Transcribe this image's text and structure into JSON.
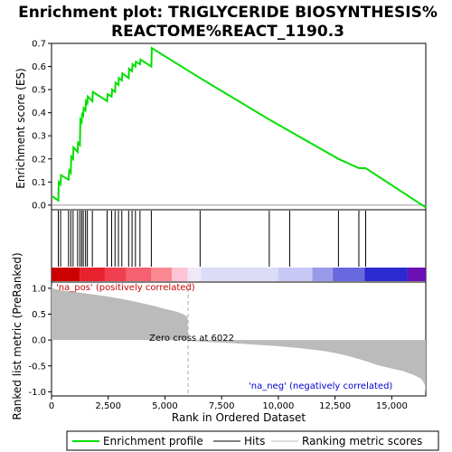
{
  "title_lines": [
    "Enrichment plot: TRIGLYCERIDE BIOSYNTHESIS%",
    "REACTOME%REACT_1190.3"
  ],
  "colors": {
    "enrichment_line": "#00e000",
    "hit_line": "#000000",
    "metric_fill": "#bbbbbb",
    "pos_label": "#cc0000",
    "neg_label": "#0000cc",
    "zero_cross_line": "#aaaaaa"
  },
  "chart_data": [
    {
      "type": "line",
      "name": "enrichment-score-panel",
      "ylabel": "Enrichment score (ES)",
      "ylim": [
        -0.02,
        0.7
      ],
      "yticks": [
        0.0,
        0.1,
        0.2,
        0.3,
        0.4,
        0.5,
        0.6,
        0.7
      ],
      "ytick_labels": [
        "0.0",
        "0.1",
        "0.2",
        "0.3",
        "0.4",
        "0.5",
        "0.6",
        "0.7"
      ],
      "xlim": [
        0,
        16500
      ],
      "series": [
        {
          "name": "Enrichment profile",
          "x": [
            0,
            300,
            320,
            400,
            420,
            750,
            780,
            850,
            870,
            950,
            970,
            1150,
            1170,
            1250,
            1270,
            1330,
            1350,
            1400,
            1420,
            1500,
            1520,
            1580,
            1600,
            1800,
            1820,
            2450,
            2470,
            2650,
            2670,
            2800,
            2820,
            2950,
            2970,
            3100,
            3120,
            3400,
            3420,
            3550,
            3570,
            3700,
            3720,
            3900,
            3920,
            4400,
            4420,
            6550,
            9600,
            10500,
            12650,
            13550,
            13850,
            16500
          ],
          "y": [
            0.04,
            0.02,
            0.1,
            0.09,
            0.13,
            0.11,
            0.15,
            0.14,
            0.21,
            0.2,
            0.25,
            0.23,
            0.27,
            0.26,
            0.37,
            0.36,
            0.4,
            0.39,
            0.42,
            0.41,
            0.45,
            0.44,
            0.47,
            0.45,
            0.49,
            0.45,
            0.48,
            0.47,
            0.5,
            0.49,
            0.53,
            0.52,
            0.55,
            0.54,
            0.57,
            0.55,
            0.59,
            0.58,
            0.61,
            0.6,
            0.62,
            0.61,
            0.63,
            0.6,
            0.68,
            0.55,
            0.37,
            0.32,
            0.2,
            0.16,
            0.16,
            -0.01
          ]
        }
      ]
    },
    {
      "type": "heatmap",
      "name": "hits-panel",
      "series": [
        {
          "name": "Hits",
          "x": [
            300,
            400,
            750,
            850,
            950,
            1150,
            1250,
            1330,
            1400,
            1500,
            1580,
            1800,
            2450,
            2650,
            2800,
            2950,
            3100,
            3400,
            3550,
            3700,
            3900,
            4400,
            6550,
            9600,
            10500,
            12650,
            13550,
            13850
          ]
        }
      ],
      "color_bands": [
        {
          "from": 0,
          "to": 1250,
          "color": "#cc0000"
        },
        {
          "from": 1250,
          "to": 2350,
          "color": "#e8222c"
        },
        {
          "from": 2350,
          "to": 3300,
          "color": "#f04050"
        },
        {
          "from": 3300,
          "to": 4400,
          "color": "#f66070"
        },
        {
          "from": 4400,
          "to": 5300,
          "color": "#fa8890"
        },
        {
          "from": 5300,
          "to": 6000,
          "color": "#fcc4d4"
        },
        {
          "from": 6000,
          "to": 6600,
          "color": "#f0e8f8"
        },
        {
          "from": 6600,
          "to": 10000,
          "color": "#dcdcf8"
        },
        {
          "from": 10000,
          "to": 11500,
          "color": "#c8c8f4"
        },
        {
          "from": 11500,
          "to": 12400,
          "color": "#9a9aea"
        },
        {
          "from": 12400,
          "to": 13800,
          "color": "#6868e0"
        },
        {
          "from": 13800,
          "to": 15700,
          "color": "#2a2ad0"
        },
        {
          "from": 15700,
          "to": 16500,
          "color": "#6a10b4"
        }
      ]
    },
    {
      "type": "area",
      "name": "ranked-metric-panel",
      "ylabel": "Ranked list metric (PreRanked)",
      "xlabel": "Rank in Ordered Dataset",
      "ylim": [
        -1.08,
        1.12
      ],
      "yticks": [
        -1.0,
        -0.5,
        0.0,
        0.5,
        1.0
      ],
      "ytick_labels": [
        "-1.0",
        "-0.5",
        "0.0",
        "0.5",
        "1.0"
      ],
      "xlim": [
        0,
        16500
      ],
      "xticks": [
        0,
        2500,
        5000,
        7500,
        10000,
        12500,
        15000
      ],
      "xtick_labels": [
        "0",
        "2,500",
        "5,000",
        "7,500",
        "10,000",
        "12,500",
        "15,000"
      ],
      "series": [
        {
          "name": "Ranking metric scores",
          "x": [
            0,
            50,
            300,
            600,
            1000,
            1500,
            2000,
            2500,
            3000,
            3500,
            4000,
            4500,
            5000,
            5500,
            5800,
            6000,
            6022,
            6100,
            7000,
            8000,
            9000,
            10000,
            11000,
            12000,
            12500,
            13000,
            13500,
            14000,
            14500,
            15000,
            15500,
            16000,
            16300,
            16450,
            16500
          ],
          "y": [
            1.05,
            1.0,
            0.97,
            0.95,
            0.93,
            0.9,
            0.87,
            0.84,
            0.8,
            0.76,
            0.71,
            0.66,
            0.6,
            0.55,
            0.5,
            0.45,
            0.0,
            -0.02,
            -0.04,
            -0.06,
            -0.09,
            -0.12,
            -0.16,
            -0.21,
            -0.25,
            -0.3,
            -0.36,
            -0.43,
            -0.5,
            -0.55,
            -0.6,
            -0.68,
            -0.75,
            -0.85,
            -1.0
          ]
        }
      ],
      "annotations": {
        "pos_label": "'na_pos' (positively correlated)",
        "neg_label": "'na_neg' (negatively correlated)",
        "zero_cross": "Zero cross at 6022",
        "zero_cross_x": 6022
      }
    }
  ],
  "legend": {
    "entries": [
      "Enrichment profile",
      "Hits",
      "Ranking metric scores"
    ]
  }
}
